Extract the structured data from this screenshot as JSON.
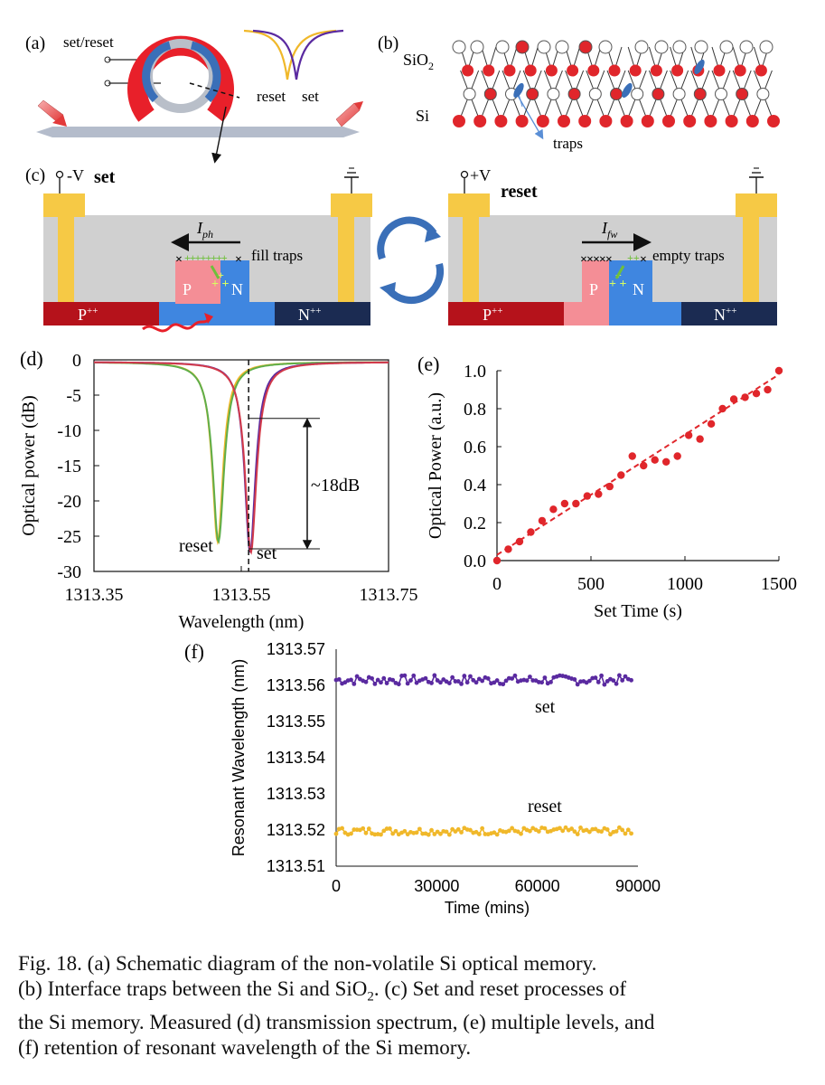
{
  "panels": {
    "a": {
      "label": "(a)",
      "set_reset_label": "set/reset",
      "reset_text": "reset",
      "set_text": "set"
    },
    "b": {
      "label": "(b)",
      "sio2_label": "SiO",
      "sio2_sub": "2",
      "si_label": "Si",
      "traps_label": "traps"
    },
    "c": {
      "label": "(c)",
      "left": {
        "voltage": "-V",
        "title": "set",
        "current": "I",
        "current_sub": "ph",
        "traps_text": "fill traps",
        "p_label": "P",
        "n_label": "N",
        "p_plus": "P",
        "n_plus": "N",
        "plus_sup": "++"
      },
      "right": {
        "voltage": "+V",
        "title": "reset",
        "current": "I",
        "current_sub": "fw",
        "traps_text": "empty traps",
        "p_label": "P",
        "n_label": "N",
        "p_plus": "P",
        "n_plus": "N",
        "plus_sup": "++"
      }
    }
  },
  "colors": {
    "yellow_electrode": "#f6c945",
    "gray_oxide": "#d0d0d0",
    "p_plus": "#b5121b",
    "p_light": "#f48e96",
    "n_blue": "#3f86e0",
    "n_plus": "#1b2b52",
    "ring_red": "#e8202a",
    "ring_blue": "#3a6fb8",
    "set_curve": "#5a2aa0",
    "reset_curve": "#f0b82a",
    "red_points": "#e0262b",
    "si_atom": "#e0262b"
  },
  "chart_data": [
    {
      "panel": "(d)",
      "type": "line",
      "xlabel": "Wavelength (nm)",
      "ylabel": "Optical power (dB)",
      "xlim": [
        1313.35,
        1313.75
      ],
      "ylim": [
        -30,
        0
      ],
      "xticks": [
        "1313.35",
        "1313.55",
        "1313.75"
      ],
      "yticks": [
        "0",
        "-5",
        "-10",
        "-15",
        "-20",
        "-25",
        "-30"
      ],
      "series": [
        {
          "name": "reset",
          "dip_center": 1313.518,
          "dip_depth": -25.5,
          "width": 0.018
        },
        {
          "name": "set",
          "dip_center": 1313.562,
          "dip_depth": -27.0,
          "width": 0.018
        }
      ],
      "annotations": [
        "~18dB",
        "reset",
        "set"
      ],
      "marker_line_x": 1313.56,
      "bracket_db": [
        -8.3,
        -26.8
      ]
    },
    {
      "panel": "(e)",
      "type": "scatter",
      "xlabel": "Set Time (s)",
      "ylabel": "Optical Power (a.u.)",
      "xlim": [
        0,
        1500
      ],
      "ylim": [
        0,
        1.0
      ],
      "xticks": [
        "0",
        "500",
        "1000",
        "1500"
      ],
      "yticks": [
        "0.0",
        "0.2",
        "0.4",
        "0.6",
        "0.8",
        "1.0"
      ],
      "points": [
        [
          0,
          0.0
        ],
        [
          60,
          0.06
        ],
        [
          120,
          0.1
        ],
        [
          180,
          0.15
        ],
        [
          240,
          0.21
        ],
        [
          300,
          0.27
        ],
        [
          360,
          0.3
        ],
        [
          420,
          0.3
        ],
        [
          480,
          0.34
        ],
        [
          540,
          0.35
        ],
        [
          600,
          0.39
        ],
        [
          660,
          0.45
        ],
        [
          720,
          0.55
        ],
        [
          780,
          0.5
        ],
        [
          840,
          0.53
        ],
        [
          900,
          0.52
        ],
        [
          960,
          0.55
        ],
        [
          1020,
          0.66
        ],
        [
          1080,
          0.64
        ],
        [
          1140,
          0.72
        ],
        [
          1200,
          0.8
        ],
        [
          1260,
          0.85
        ],
        [
          1320,
          0.86
        ],
        [
          1380,
          0.88
        ],
        [
          1440,
          0.9
        ],
        [
          1500,
          1.0
        ]
      ],
      "fit_line": [
        [
          0,
          0.03
        ],
        [
          1500,
          0.98
        ]
      ]
    },
    {
      "panel": "(f)",
      "type": "line",
      "xlabel": "Time (mins)",
      "ylabel": "Resonant Wavelength (nm)",
      "xlim": [
        0,
        90000
      ],
      "ylim": [
        1313.51,
        1313.57
      ],
      "xticks": [
        "0",
        "30000",
        "60000",
        "90000"
      ],
      "yticks": [
        "1313.57",
        "1313.56",
        "1313.55",
        "1313.54",
        "1313.53",
        "1313.52",
        "1313.51"
      ],
      "series": [
        {
          "name": "set",
          "mean": 1313.5615,
          "jitter": 0.0013,
          "points": 100
        },
        {
          "name": "reset",
          "mean": 1313.5197,
          "jitter": 0.001,
          "points": 100
        }
      ]
    }
  ],
  "caption": {
    "line1": "Fig. 18.   (a) Schematic diagram of the non-volatile Si optical memory.",
    "line2_a": "(b) Interface traps between the Si and SiO",
    "line2_sub": "2",
    "line2_b": ". (c) Set and reset processes of",
    "line3": "the Si memory. Measured (d) transmission spectrum, (e) multiple levels, and",
    "line4": "(f) retention of resonant wavelength of the Si memory."
  }
}
